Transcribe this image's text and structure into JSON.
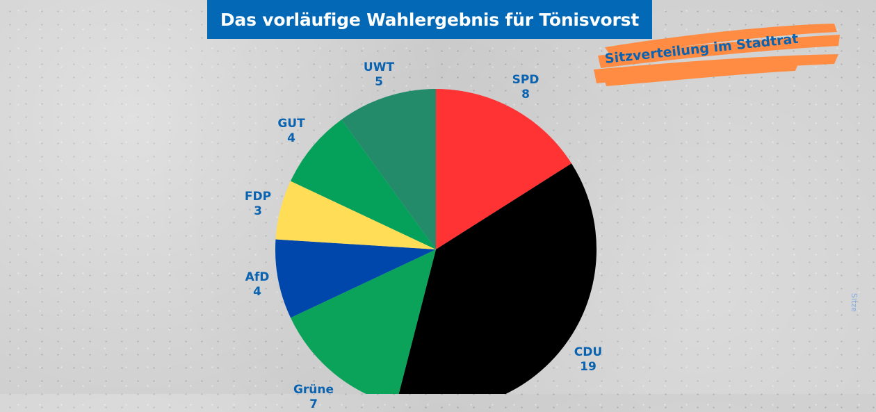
{
  "title": "Das vorläufige Wahlergebnis für Tönisvorst",
  "subtitle": "Sitzverteilung im Stadtrat",
  "side_note": "Sitze",
  "colors": {
    "title_bg": "#0368b5",
    "title_text": "#ffffff",
    "subtitle_brush": "#ff8c42",
    "label_text": "#0a63b0"
  },
  "labels": {
    "SPD": {
      "name": "SPD",
      "value": "8"
    },
    "CDU": {
      "name": "CDU",
      "value": "19"
    },
    "Gruene": {
      "name": "Grüne",
      "value": "7"
    },
    "AfD": {
      "name": "AfD",
      "value": "4"
    },
    "FDP": {
      "name": "FDP",
      "value": "3"
    },
    "GUT": {
      "name": "GUT",
      "value": "4"
    },
    "UWT": {
      "name": "UWT",
      "value": "5"
    }
  },
  "chart_data": {
    "type": "pie",
    "title": "Das vorläufige Wahlergebnis für Tönisvorst",
    "subtitle": "Sitzverteilung im Stadtrat",
    "unit": "Sitze",
    "categories": [
      "SPD",
      "CDU",
      "Grüne",
      "AfD",
      "FDP",
      "GUT",
      "UWT"
    ],
    "values": [
      8,
      19,
      7,
      4,
      3,
      4,
      5
    ],
    "colors": [
      "#ff3333",
      "#000000",
      "#0ba259",
      "#0047ab",
      "#ffdd57",
      "#05a05a",
      "#248b6a"
    ],
    "start_angle_deg": 0,
    "direction": "clockwise",
    "legend": "none (data labels outside slices)"
  }
}
